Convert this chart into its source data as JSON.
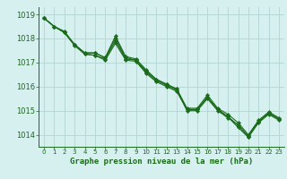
{
  "title": "Graphe pression niveau de la mer (hPa)",
  "bg_color": "#d6efef",
  "grid_color": "#b8d8d8",
  "line_color": "#1a6b1a",
  "marker_color": "#1a6b1a",
  "xlim": [
    -0.5,
    23.5
  ],
  "ylim": [
    1013.5,
    1019.3
  ],
  "yticks": [
    1014,
    1015,
    1016,
    1017,
    1018,
    1019
  ],
  "xticks": [
    0,
    1,
    2,
    3,
    4,
    5,
    6,
    7,
    8,
    9,
    10,
    11,
    12,
    13,
    14,
    15,
    16,
    17,
    18,
    19,
    20,
    21,
    22,
    23
  ],
  "series": [
    [
      1018.85,
      1018.5,
      1018.3,
      1017.75,
      1017.35,
      1017.3,
      1017.1,
      1017.8,
      1017.1,
      1017.05,
      1016.55,
      1016.2,
      1016.0,
      1015.8,
      1015.05,
      1015.05,
      1015.55,
      1015.05,
      1014.75,
      1014.3,
      1013.9,
      1014.5,
      1014.85,
      1014.6
    ],
    [
      1018.85,
      1018.5,
      1018.25,
      1017.7,
      1017.35,
      1017.3,
      1017.15,
      1017.9,
      1017.15,
      1017.1,
      1016.65,
      1016.3,
      1016.1,
      1015.9,
      1015.1,
      1015.1,
      1015.65,
      1015.1,
      1014.85,
      1014.5,
      1014.0,
      1014.6,
      1014.95,
      1014.7
    ],
    [
      1018.85,
      1018.5,
      1018.25,
      1017.75,
      1017.4,
      1017.4,
      1017.2,
      1018.0,
      1017.2,
      1017.1,
      1016.6,
      1016.25,
      1016.05,
      1015.85,
      1015.0,
      1015.0,
      1015.5,
      1015.0,
      1014.7,
      1014.4,
      1013.9,
      1014.55,
      1014.9,
      1014.65
    ],
    [
      1018.85,
      1018.5,
      1018.25,
      1017.75,
      1017.4,
      1017.4,
      1017.2,
      1018.1,
      1017.25,
      1017.15,
      1016.7,
      1016.3,
      1016.1,
      1015.9,
      1015.05,
      1015.05,
      1015.55,
      1015.05,
      1014.75,
      1014.4,
      1013.95,
      1014.55,
      1014.9,
      1014.65
    ]
  ]
}
